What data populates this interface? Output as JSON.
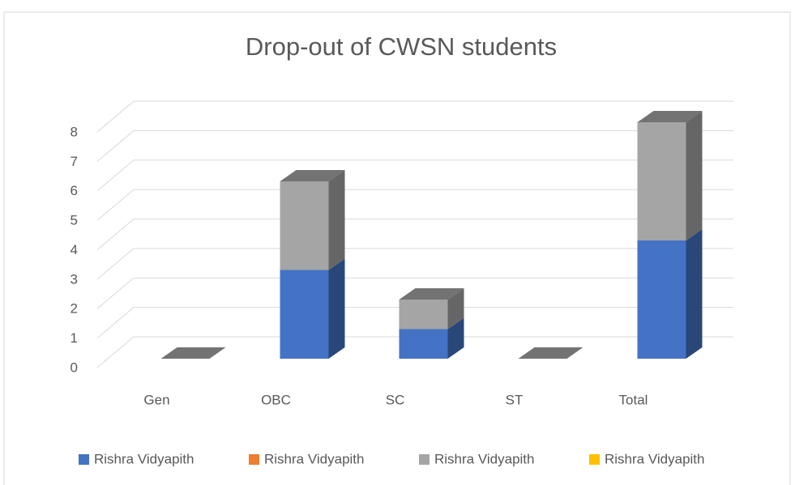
{
  "chart_data": {
    "type": "bar3d_stacked",
    "title": "Drop-out of CWSN students",
    "categories": [
      "Gen",
      "OBC",
      "SC",
      "ST",
      "Total"
    ],
    "series": [
      {
        "name": "Rishra Vidyapith",
        "color": "#4472c4",
        "values": [
          0,
          3,
          1,
          0,
          4
        ]
      },
      {
        "name": "Rishra Vidyapith",
        "color": "#ed7d31",
        "values": [
          0,
          0,
          0,
          0,
          0
        ]
      },
      {
        "name": "Rishra Vidyapith",
        "color": "#a5a5a5",
        "values": [
          0,
          3,
          1,
          0,
          4
        ]
      },
      {
        "name": "Rishra Vidyapith",
        "color": "#ffc000",
        "values": [
          0,
          0,
          0,
          0,
          0
        ]
      }
    ],
    "ylim": [
      0,
      8
    ],
    "yticks": [
      0,
      1,
      2,
      3,
      4,
      5,
      6,
      7,
      8
    ],
    "grid": true,
    "legend": "bottom"
  }
}
